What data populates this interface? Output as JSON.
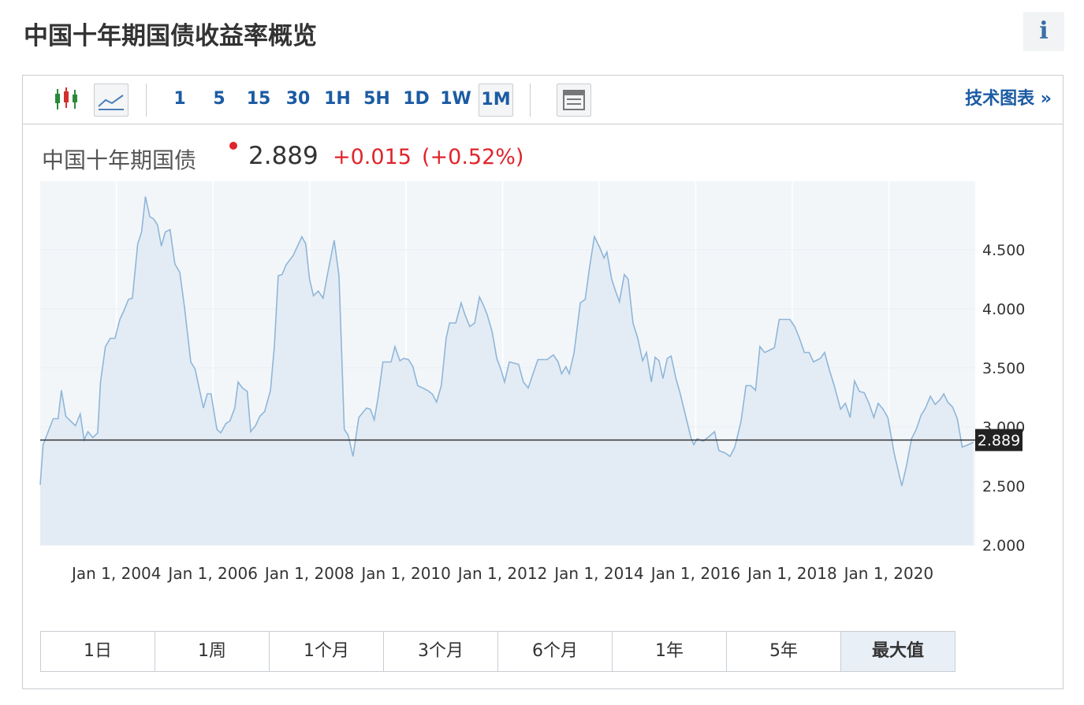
{
  "header": {
    "title": "中国十年期国债收益率概览",
    "info": "i"
  },
  "toolbar": {
    "intervals": [
      "1",
      "5",
      "15",
      "30",
      "1H",
      "5H",
      "1D",
      "1W",
      "1M"
    ],
    "link": "技术图表 »"
  },
  "quote": {
    "name": "中国十年期国债",
    "price": "2.889",
    "change": "+0.015",
    "change_pct": "(+0.52%)"
  },
  "chart_data": {
    "type": "line",
    "color": "#8fb6d9",
    "area_color": "#e3ecf4",
    "background": "#f3f6f9",
    "last_value": 2.889,
    "x": [
      2002.42,
      2002.48,
      2002.69,
      2002.79,
      2002.86,
      2002.95,
      2003.15,
      2003.25,
      2003.33,
      2003.41,
      2003.51,
      2003.61,
      2003.67,
      2003.77,
      2003.87,
      2003.97,
      2004.07,
      2004.15,
      2004.25,
      2004.33,
      2004.44,
      2004.52,
      2004.6,
      2004.69,
      2004.77,
      2004.85,
      2004.93,
      2005.01,
      2005.11,
      2005.21,
      2005.31,
      2005.41,
      2005.54,
      2005.63,
      2005.8,
      2005.88,
      2005.96,
      2006.08,
      2006.16,
      2006.27,
      2006.35,
      2006.45,
      2006.52,
      2006.61,
      2006.71,
      2006.78,
      2006.88,
      2006.97,
      2007.07,
      2007.19,
      2007.27,
      2007.35,
      2007.43,
      2007.51,
      2007.66,
      2007.84,
      2007.92,
      2008.0,
      2008.08,
      2008.18,
      2008.28,
      2008.38,
      2008.51,
      2008.61,
      2008.72,
      2008.8,
      2008.9,
      2009.02,
      2009.18,
      2009.26,
      2009.34,
      2009.42,
      2009.52,
      2009.69,
      2009.77,
      2009.87,
      2009.95,
      2010.05,
      2010.14,
      2010.24,
      2010.44,
      2010.54,
      2010.63,
      2010.73,
      2010.83,
      2010.9,
      2011.03,
      2011.14,
      2011.22,
      2011.32,
      2011.42,
      2011.52,
      2011.58,
      2011.68,
      2011.78,
      2011.88,
      2011.97,
      2012.04,
      2012.14,
      2012.33,
      2012.43,
      2012.53,
      2012.63,
      2012.73,
      2012.92,
      2013.05,
      2013.15,
      2013.22,
      2013.31,
      2013.38,
      2013.48,
      2013.61,
      2013.71,
      2013.8,
      2013.9,
      2014.0,
      2014.1,
      2014.16,
      2014.26,
      2014.34,
      2014.42,
      2014.52,
      2014.6,
      2014.7,
      2014.8,
      2014.9,
      2014.98,
      2015.08,
      2015.16,
      2015.24,
      2015.32,
      2015.41,
      2015.49,
      2015.59,
      2015.68,
      2015.8,
      2015.9,
      2015.96,
      2016.03,
      2016.16,
      2016.25,
      2016.39,
      2016.48,
      2016.61,
      2016.71,
      2016.81,
      2016.94,
      2017.04,
      2017.14,
      2017.24,
      2017.33,
      2017.43,
      2017.53,
      2017.63,
      2017.73,
      2017.95,
      2018.05,
      2018.15,
      2018.25,
      2018.35,
      2018.44,
      2018.58,
      2018.67,
      2018.77,
      2018.87,
      2019.0,
      2019.1,
      2019.2,
      2019.29,
      2019.39,
      2019.49,
      2019.59,
      2019.69,
      2019.78,
      2019.88,
      2019.98,
      2020.11,
      2020.27,
      2020.37,
      2020.47,
      2020.57,
      2020.67,
      2020.76,
      2020.86,
      2020.96,
      2021.06,
      2021.14,
      2021.22,
      2021.32,
      2021.42,
      2021.52,
      2021.65,
      2021.75
    ],
    "values": [
      2.51,
      2.85,
      3.07,
      3.07,
      3.31,
      3.09,
      3.01,
      3.11,
      2.89,
      2.96,
      2.91,
      2.95,
      3.38,
      3.68,
      3.75,
      3.75,
      3.91,
      3.98,
      4.08,
      4.09,
      4.55,
      4.65,
      4.95,
      4.78,
      4.76,
      4.71,
      4.53,
      4.65,
      4.67,
      4.38,
      4.31,
      4.01,
      3.55,
      3.49,
      3.16,
      3.28,
      3.28,
      2.98,
      2.95,
      3.03,
      3.05,
      3.16,
      3.38,
      3.33,
      3.3,
      2.96,
      3.01,
      3.09,
      3.13,
      3.31,
      3.68,
      4.28,
      4.29,
      4.37,
      4.45,
      4.61,
      4.55,
      4.25,
      4.11,
      4.15,
      4.09,
      4.31,
      4.58,
      4.28,
      2.98,
      2.93,
      2.75,
      3.08,
      3.16,
      3.15,
      3.06,
      3.25,
      3.55,
      3.55,
      3.68,
      3.56,
      3.58,
      3.57,
      3.51,
      3.35,
      3.31,
      3.28,
      3.21,
      3.35,
      3.75,
      3.88,
      3.88,
      4.05,
      3.95,
      3.85,
      3.88,
      4.1,
      4.05,
      3.95,
      3.81,
      3.58,
      3.48,
      3.38,
      3.55,
      3.53,
      3.38,
      3.33,
      3.45,
      3.57,
      3.57,
      3.61,
      3.55,
      3.45,
      3.51,
      3.45,
      3.63,
      4.05,
      4.08,
      4.35,
      4.61,
      4.53,
      4.43,
      4.48,
      4.25,
      4.15,
      4.06,
      4.29,
      4.25,
      3.88,
      3.75,
      3.56,
      3.63,
      3.38,
      3.59,
      3.56,
      3.41,
      3.58,
      3.6,
      3.41,
      3.28,
      3.08,
      2.91,
      2.85,
      2.9,
      2.88,
      2.91,
      2.96,
      2.8,
      2.78,
      2.75,
      2.83,
      3.05,
      3.35,
      3.35,
      3.31,
      3.68,
      3.63,
      3.65,
      3.67,
      3.91,
      3.91,
      3.85,
      3.75,
      3.63,
      3.63,
      3.55,
      3.58,
      3.63,
      3.48,
      3.35,
      3.15,
      3.2,
      3.08,
      3.39,
      3.3,
      3.29,
      3.2,
      3.08,
      3.2,
      3.15,
      3.08,
      2.78,
      2.5,
      2.68,
      2.9,
      2.98,
      3.1,
      3.16,
      3.26,
      3.19,
      3.23,
      3.28,
      3.21,
      3.17,
      3.07,
      2.83,
      2.85,
      2.87
    ],
    "xlim": [
      2002.42,
      2021.79
    ],
    "xticks": [
      {
        "value": 2004,
        "label": "Jan 1, 2004"
      },
      {
        "value": 2006,
        "label": "Jan 1, 2006"
      },
      {
        "value": 2008,
        "label": "Jan 1, 2008"
      },
      {
        "value": 2010,
        "label": "Jan 1, 2010"
      },
      {
        "value": 2012,
        "label": "Jan 1, 2012"
      },
      {
        "value": 2014,
        "label": "Jan 1, 2014"
      },
      {
        "value": 2016,
        "label": "Jan 1, 2016"
      },
      {
        "value": 2018,
        "label": "Jan 1, 2018"
      },
      {
        "value": 2020,
        "label": "Jan 1, 2020"
      }
    ],
    "ylim": [
      2.0,
      5.08
    ],
    "yticks": [
      {
        "value": 2,
        "label": "2.000"
      },
      {
        "value": 2.5,
        "label": "2.500"
      },
      {
        "value": 3,
        "label": "3.000"
      },
      {
        "value": 3.5,
        "label": "3.500"
      },
      {
        "value": 4,
        "label": "4.000"
      },
      {
        "value": 4.5,
        "label": "4.500"
      }
    ],
    "grid": true
  },
  "ranges": [
    "1日",
    "1周",
    "1个月",
    "3个月",
    "6个月",
    "1年",
    "5年",
    "最大值"
  ]
}
